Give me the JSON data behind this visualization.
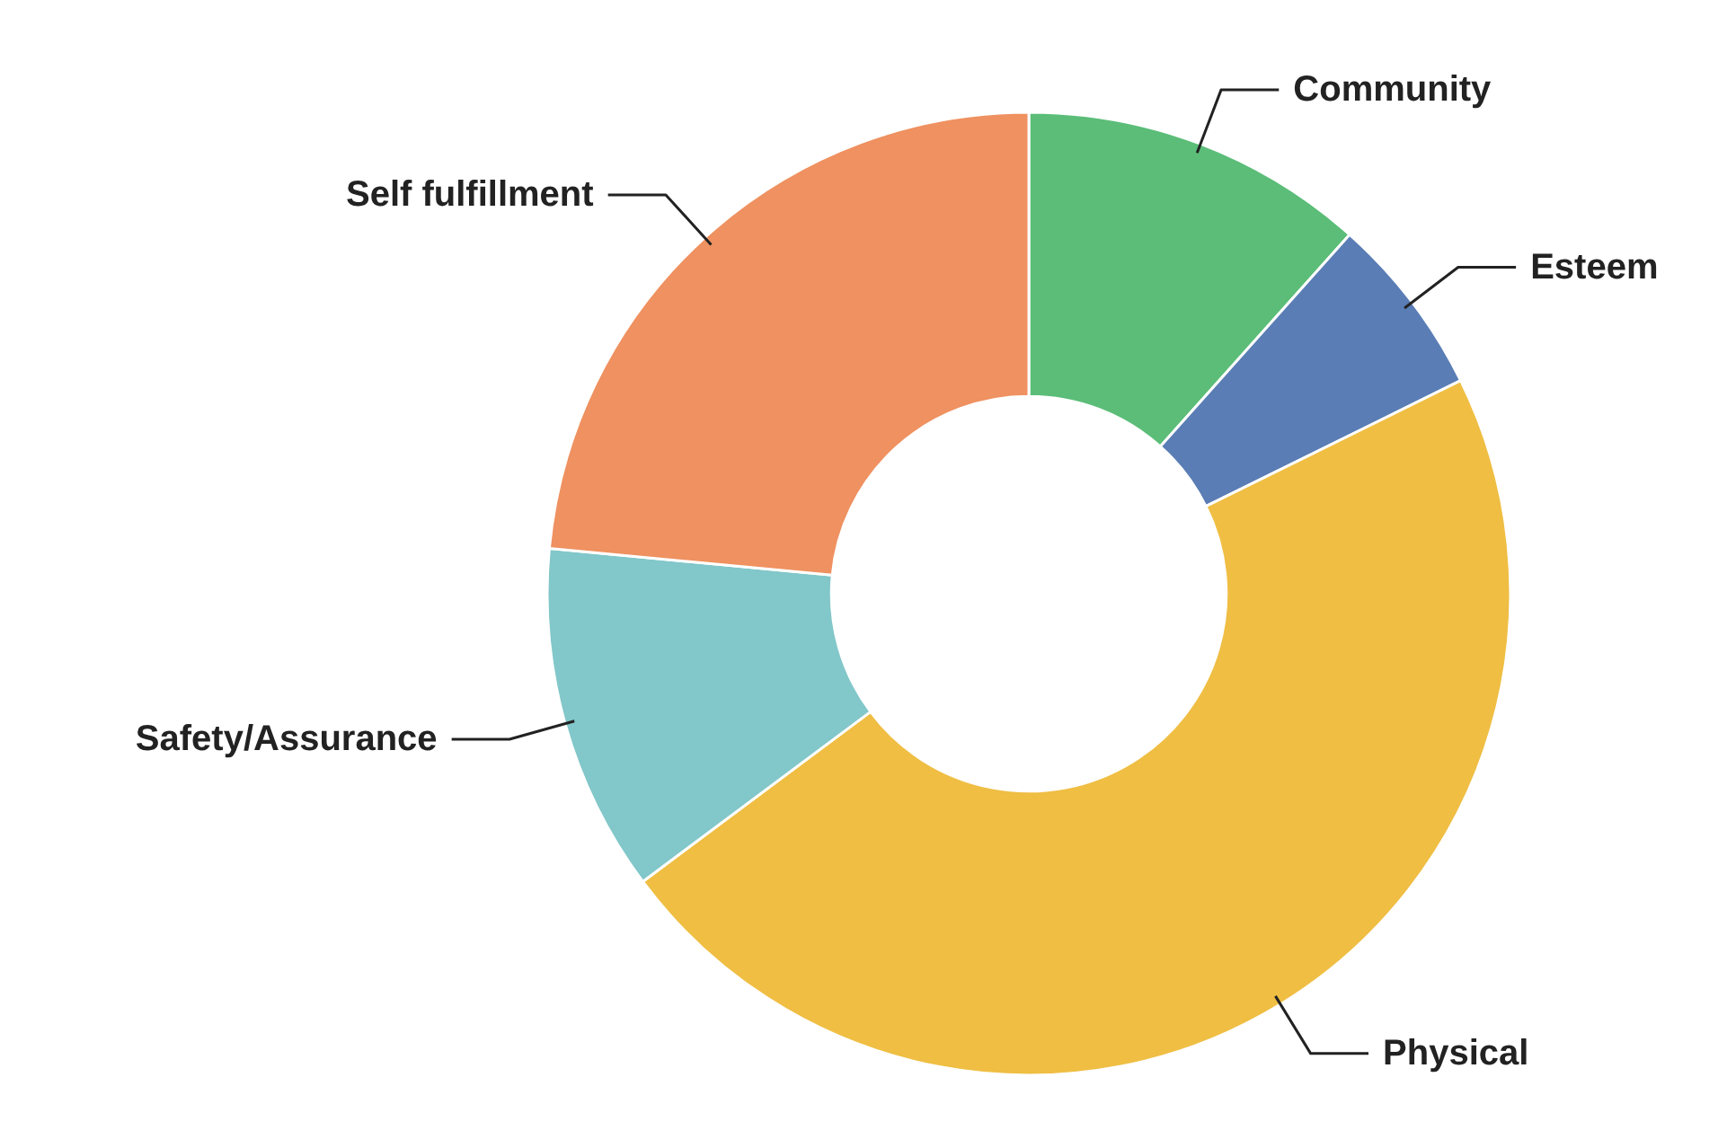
{
  "chart_data": {
    "type": "donut",
    "categories": [
      "Community",
      "Esteem",
      "Physical",
      "Safety/Assurance",
      "Self fulfillment"
    ],
    "values": [
      11.6,
      6.1,
      47.1,
      11.7,
      23.5
    ],
    "colors": [
      "#5bbd78",
      "#5a7db5",
      "#efbe43",
      "#82c7c9",
      "#ef9160"
    ],
    "legend": false
  }
}
